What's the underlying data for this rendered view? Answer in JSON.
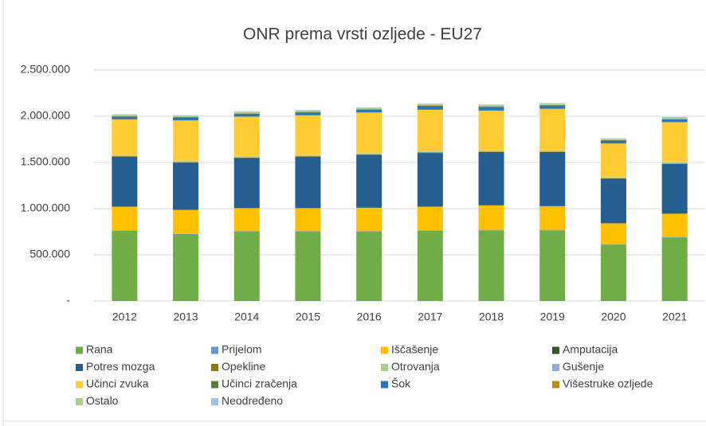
{
  "chart_data": {
    "type": "stacked_bar",
    "title": "ONR prema vrsti ozljede - EU27",
    "categories": [
      "2012",
      "2013",
      "2014",
      "2015",
      "2016",
      "2017",
      "2018",
      "2019",
      "2020",
      "2021"
    ],
    "ylim": [
      0,
      2500000
    ],
    "yticks": [
      {
        "value": 0,
        "label": "-"
      },
      {
        "value": 500000,
        "label": "500.000"
      },
      {
        "value": 1000000,
        "label": "1.000.000"
      },
      {
        "value": 1500000,
        "label": "1.500.000"
      },
      {
        "value": 2000000,
        "label": "2.000.000"
      },
      {
        "value": 2500000,
        "label": "2.500.000"
      }
    ],
    "legend": "bottom",
    "series": [
      {
        "name": "Rana",
        "color": "#70AD47",
        "values": [
          760000,
          720000,
          750000,
          750000,
          750000,
          760000,
          765000,
          765000,
          610000,
          685000
        ]
      },
      {
        "name": "Prijelom",
        "color": "#5B9BD5",
        "values": [
          5000,
          5000,
          5000,
          5000,
          5000,
          5000,
          5000,
          5000,
          5000,
          5000
        ]
      },
      {
        "name": "Iščašenje",
        "color": "#FFC000",
        "values": [
          255000,
          260000,
          250000,
          250000,
          255000,
          255000,
          265000,
          255000,
          225000,
          255000
        ]
      },
      {
        "name": "Amputacija",
        "color": "#375623",
        "values": [
          3000,
          3000,
          3000,
          3000,
          3000,
          3000,
          3000,
          3000,
          3000,
          3000
        ]
      },
      {
        "name": "Potres mozga",
        "color": "#255E91",
        "values": [
          540000,
          510000,
          540000,
          555000,
          570000,
          580000,
          575000,
          585000,
          480000,
          535000
        ]
      },
      {
        "name": "Opekline",
        "color": "#997300",
        "values": [
          5000,
          5000,
          5000,
          5000,
          5000,
          5000,
          5000,
          5000,
          5000,
          5000
        ]
      },
      {
        "name": "Otrovanja",
        "color": "#A9D18E",
        "values": [
          10000,
          10000,
          10000,
          10000,
          10000,
          10000,
          10000,
          10000,
          10000,
          10000
        ]
      },
      {
        "name": "Gušenje",
        "color": "#8FAADC",
        "values": [
          2000,
          2000,
          2000,
          2000,
          2000,
          2000,
          2000,
          2000,
          2000,
          2000
        ]
      },
      {
        "name": "Učinci zvuka",
        "color": "#FFCD33",
        "values": [
          385000,
          440000,
          430000,
          430000,
          440000,
          450000,
          430000,
          450000,
          365000,
          435000
        ]
      },
      {
        "name": "Učinci zračenja",
        "color": "#548235",
        "values": [
          2000,
          2000,
          2000,
          2000,
          2000,
          2000,
          2000,
          2000,
          2000,
          2000
        ]
      },
      {
        "name": "Šok",
        "color": "#2E75B6",
        "values": [
          30000,
          30000,
          30000,
          30000,
          30000,
          40000,
          40000,
          35000,
          30000,
          30000
        ]
      },
      {
        "name": "Višestruke ozljede",
        "color": "#BF9000",
        "values": [
          5000,
          5000,
          5000,
          5000,
          5000,
          5000,
          5000,
          5000,
          5000,
          5000
        ]
      },
      {
        "name": "Ostalo",
        "color": "#A9D18E",
        "values": [
          15000,
          15000,
          15000,
          15000,
          15000,
          15000,
          15000,
          15000,
          15000,
          15000
        ]
      },
      {
        "name": "Neodređeno",
        "color": "#9DC3E6",
        "values": [
          5000,
          5000,
          5000,
          5000,
          5000,
          5000,
          5000,
          5000,
          5000,
          5000
        ]
      }
    ]
  }
}
